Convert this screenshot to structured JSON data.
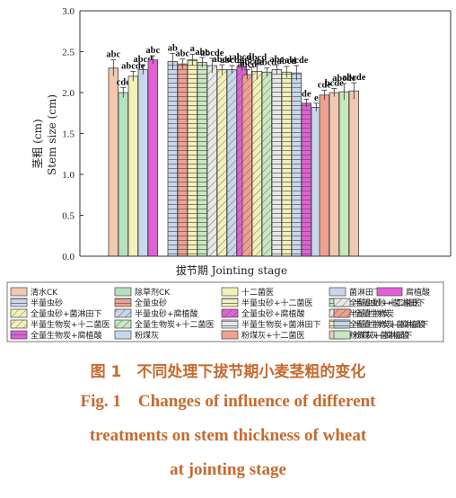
{
  "colors": {
    "axis": "#333333",
    "caption": "#c66a2e"
  },
  "chart_data": {
    "type": "bar",
    "ylabel": "茎粗 (cm)",
    "ylabel2": "Stem size (cm)",
    "xlabel": "拔节期 Jointing stage",
    "ylim": [
      0,
      3.0
    ],
    "yticks": [
      "0.0",
      "0.5",
      "1.0",
      "1.5",
      "2.0",
      "2.5",
      "3.0"
    ],
    "groups": [
      {
        "values": [
          2.3,
          2.0,
          2.2,
          2.28,
          2.4
        ],
        "errors": [
          0.1,
          0.06,
          0.06,
          0.06,
          0.05
        ],
        "labels": [
          "abc",
          "cde",
          "abcde",
          "abcd",
          "abc"
        ]
      },
      {
        "values": [
          2.38,
          2.35,
          2.4,
          2.37,
          2.33,
          2.28,
          2.28,
          2.32,
          2.21
        ],
        "errors": [
          0.1,
          0.06,
          0.07,
          0.06,
          0.09,
          0.06,
          0.05,
          0.05,
          0.1
        ],
        "labels": [
          "ab",
          "abc",
          "a",
          "abc",
          "abcde",
          "abcd",
          "abcde",
          "abcd",
          "abcde"
        ]
      },
      {
        "values": [
          2.22,
          2.26,
          2.25,
          2.28,
          2.25,
          2.24,
          1.87,
          1.82
        ],
        "errors": [
          0.06,
          0.1,
          0.05,
          0.06,
          0.07,
          0.09,
          0.05,
          0.05
        ],
        "labels": [
          "abcd",
          "abcd",
          "abcd",
          "abc",
          "abcd",
          "abcde",
          "de",
          "e"
        ]
      },
      {
        "values": [
          1.97,
          2.0,
          2.01,
          2.02
        ],
        "errors": [
          0.06,
          0.05,
          0.1,
          0.1
        ],
        "labels": [
          "cde",
          "bcde",
          "abcde",
          "abcde"
        ]
      }
    ],
    "series": [
      {
        "name": "清水CK",
        "color": "#f2c9b0",
        "hatch": "none"
      },
      {
        "name": "除草剂CK",
        "color": "#b8e0c0",
        "hatch": "none"
      },
      {
        "name": "十二菌医",
        "color": "#f3f0b8",
        "hatch": "none"
      },
      {
        "name": "菌淋田下",
        "color": "#c8d7ec",
        "hatch": "none"
      },
      {
        "name": "腐植酸",
        "color": "#e25fd8",
        "hatch": "none"
      },
      {
        "name": "半量虫砂",
        "color": "#c8d7ec",
        "hatch": "h"
      },
      {
        "name": "全量虫砂",
        "color": "#f0a090",
        "hatch": "h"
      },
      {
        "name": "半量虫砂+十二菌医",
        "color": "#f3f0b8",
        "hatch": "h"
      },
      {
        "name": "全量虫砂+十二菌医",
        "color": "#c8e8c0",
        "hatch": "h"
      },
      {
        "name": "半量虫砂+菌淋田下",
        "color": "#e8e8e8",
        "hatch": "d"
      },
      {
        "name": "全量虫砂+菌淋田下",
        "color": "#f3f0b8",
        "hatch": "d"
      },
      {
        "name": "半量虫砂+腐植酸",
        "color": "#c8d7ec",
        "hatch": "d"
      },
      {
        "name": "全量虫砂+腐植酸",
        "color": "#e25fd8",
        "hatch": "d"
      },
      {
        "name": "半量生物炭",
        "color": "#e8e8e8",
        "hatch": "d"
      },
      {
        "name": "全量生物炭",
        "color": "#f0a090",
        "hatch": "d"
      },
      {
        "name": "半量生物炭+十二菌医",
        "color": "#f3f0b8",
        "hatch": "d"
      },
      {
        "name": "全量生物炭+十二菌医",
        "color": "#c8e8c0",
        "hatch": "d"
      },
      {
        "name": "半量生物炭+菌淋田下",
        "color": "#e8e8e8",
        "hatch": "h"
      },
      {
        "name": "全量生物炭+菌淋田下",
        "color": "#f3f0b8",
        "hatch": "h"
      },
      {
        "name": "半量生物炭+腐植酸",
        "color": "#c8d7ec",
        "hatch": "h"
      },
      {
        "name": "全量生物炭+腐植酸",
        "color": "#e25fd8",
        "hatch": "h"
      },
      {
        "name": "粉煤灰",
        "color": "#c8d7ec",
        "hatch": "none"
      },
      {
        "name": "粉煤灰+十二菌医",
        "color": "#f0a090",
        "hatch": "none"
      },
      {
        "name": "粉煤灰+菌淋田下",
        "color": "#f2c9b0",
        "hatch": "none"
      },
      {
        "name": "粉煤灰+腐植酸",
        "color": "#c8e8c0",
        "hatch": "none"
      }
    ]
  },
  "caption": {
    "cn": "图 1　不同处理下拔节期小麦茎粗的变化",
    "en1": "Fig. 1　Changes of influence of different",
    "en2": "treatments on stem thickness of wheat",
    "en3": "at jointing stage"
  }
}
